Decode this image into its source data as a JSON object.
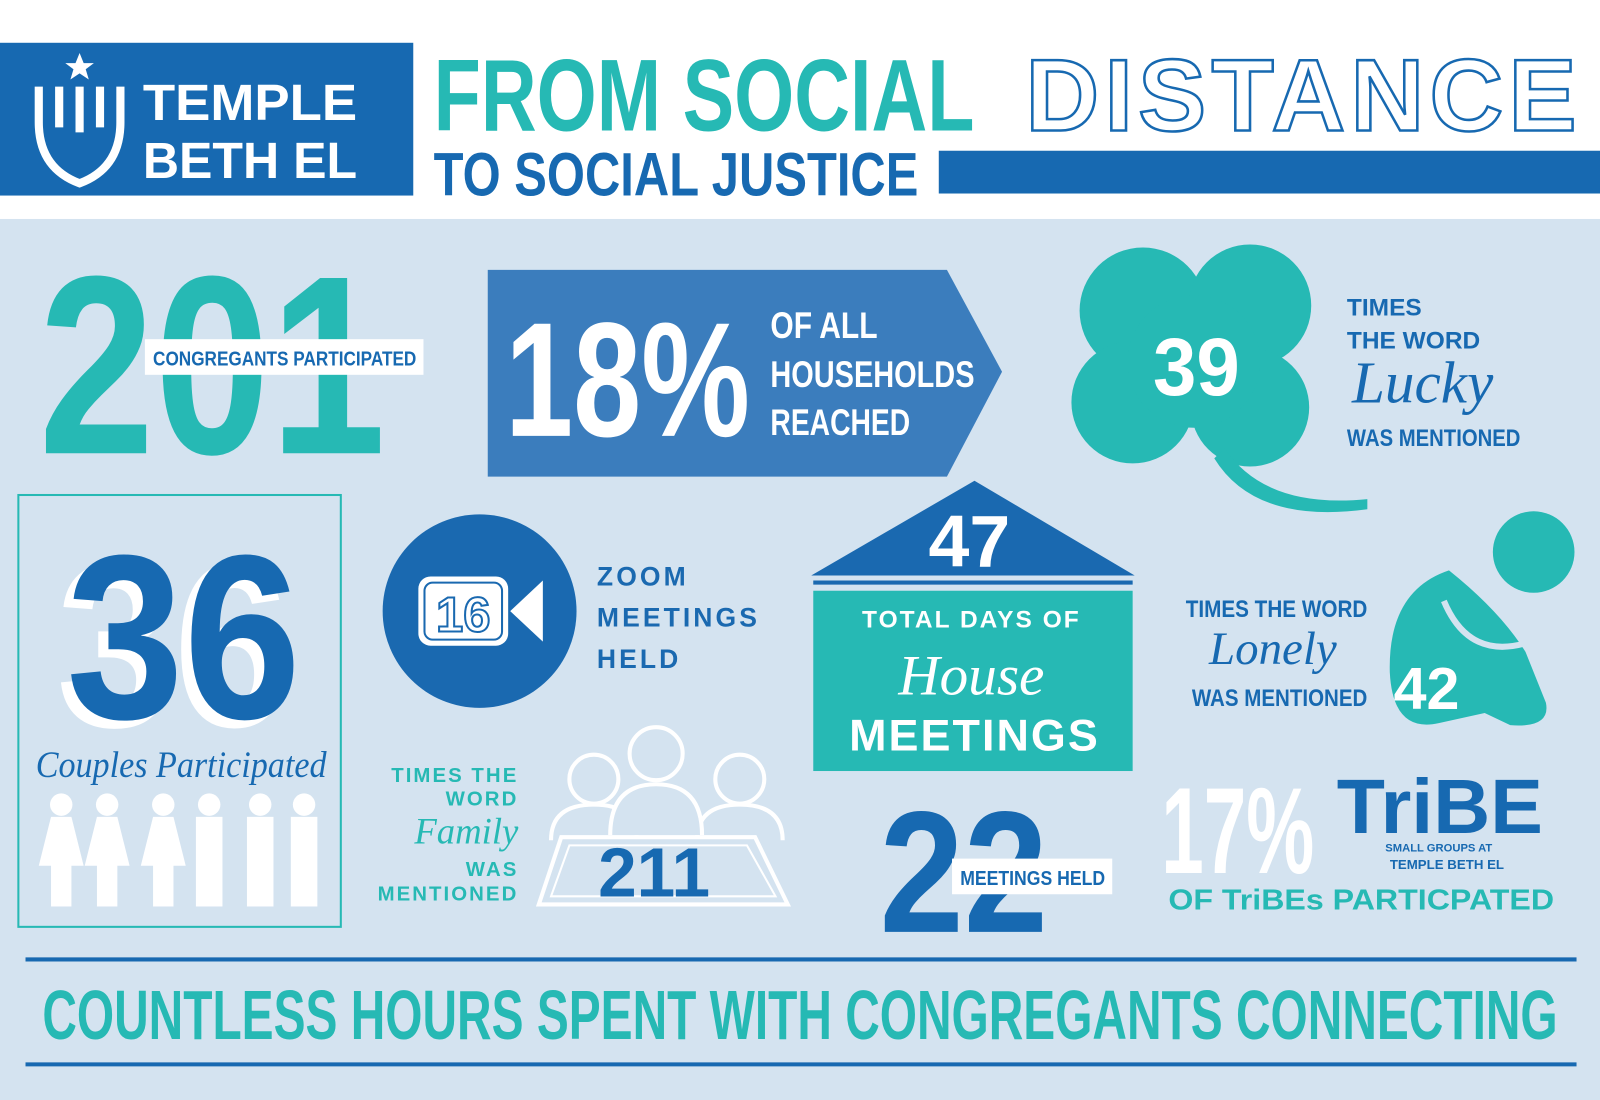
{
  "header": {
    "logo_line1": "TEMPLE",
    "logo_line2": "BETH EL",
    "title_line1": "FROM SOCIAL",
    "title_word": "DISTANCE",
    "title_line2": "TO SOCIAL JUSTICE"
  },
  "congregants": {
    "number": "201",
    "label": "CONGREGANTS PARTICIPATED"
  },
  "households": {
    "number": "18%",
    "lines": [
      "OF ALL",
      "HOUSEHOLDS",
      "REACHED"
    ]
  },
  "lucky": {
    "number": "39",
    "lines": [
      "TIMES",
      "THE WORD"
    ],
    "word": "Lucky",
    "after": "WAS MENTIONED"
  },
  "couples": {
    "number": "36",
    "label": "Couples Participated"
  },
  "zoom": {
    "number": "16",
    "lines": [
      "ZOOM",
      "MEETINGS",
      "HELD"
    ]
  },
  "house": {
    "number": "47",
    "line1": "TOTAL DAYS OF",
    "word": "House",
    "line2": "MEETINGS"
  },
  "lonely": {
    "before": "TIMES THE WORD",
    "word": "Lonely",
    "after": "WAS MENTIONED",
    "number": "42"
  },
  "family": {
    "before": [
      "TIMES THE",
      "WORD"
    ],
    "word": "Family",
    "after": [
      "WAS",
      "MENTIONED"
    ],
    "number": "211"
  },
  "meetings": {
    "number": "22",
    "label": "MEETINGS HELD"
  },
  "tribe": {
    "number": "17%",
    "label": "OF TriBEs PARTICPATED",
    "logo": "TriBE",
    "logo_line1": "SMALL GROUPS AT",
    "logo_line2": "TEMPLE BETH EL"
  },
  "footer": {
    "text": "COUNTLESS HOURS SPENT WITH CONGREGANTS CONNECTING"
  }
}
